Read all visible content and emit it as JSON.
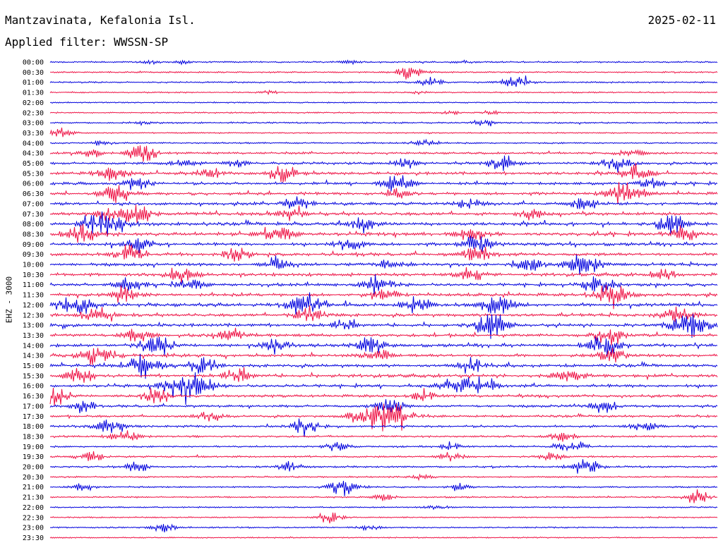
{
  "header": {
    "station": "Mantzavinata, Kefalonia Isl.",
    "date": "2025-02-11",
    "filter": "Applied filter: WWSSN-SP"
  },
  "colors": {
    "even_rows": "#0000dd",
    "odd_rows": "#ee1144"
  },
  "chart_data": {
    "type": "line",
    "title": "Mantzavinata, Kefalonia Isl.",
    "ylabel": "EHZ - 3000",
    "xlabel": "",
    "grid": false,
    "legend": "none",
    "rows": [
      {
        "time": "00:00",
        "activity": 0.2,
        "events": [
          [
            0.15,
            0.2
          ],
          [
            0.2,
            0.15
          ],
          [
            0.45,
            0.2
          ],
          [
            0.62,
            0.15
          ]
        ]
      },
      {
        "time": "00:30",
        "activity": 0.15,
        "events": [
          [
            0.54,
            0.8
          ]
        ]
      },
      {
        "time": "01:00",
        "activity": 0.2,
        "events": [
          [
            0.57,
            0.5
          ],
          [
            0.7,
            0.8
          ]
        ]
      },
      {
        "time": "01:30",
        "activity": 0.15,
        "events": [
          [
            0.33,
            0.15
          ],
          [
            0.55,
            0.15
          ]
        ]
      },
      {
        "time": "02:00",
        "activity": 0.12,
        "events": []
      },
      {
        "time": "02:30",
        "activity": 0.15,
        "events": [
          [
            0.6,
            0.2
          ],
          [
            0.66,
            0.2
          ]
        ]
      },
      {
        "time": "03:00",
        "activity": 0.2,
        "events": [
          [
            0.65,
            0.4
          ],
          [
            0.14,
            0.2
          ]
        ]
      },
      {
        "time": "03:30",
        "activity": 0.15,
        "events": [
          [
            0.02,
            0.5
          ]
        ]
      },
      {
        "time": "04:00",
        "activity": 0.2,
        "events": [
          [
            0.56,
            0.6
          ],
          [
            0.08,
            0.3
          ]
        ]
      },
      {
        "time": "04:30",
        "activity": 0.35,
        "events": [
          [
            0.14,
            1.0
          ],
          [
            0.06,
            0.5
          ],
          [
            0.87,
            0.6
          ]
        ]
      },
      {
        "time": "05:00",
        "activity": 0.45,
        "events": [
          [
            0.28,
            0.6
          ],
          [
            0.2,
            0.5
          ],
          [
            0.68,
            0.8
          ],
          [
            0.85,
            0.9
          ],
          [
            0.53,
            0.6
          ]
        ]
      },
      {
        "time": "05:30",
        "activity": 0.55,
        "events": [
          [
            0.09,
            0.9
          ],
          [
            0.35,
            0.9
          ],
          [
            0.88,
            0.9
          ],
          [
            0.24,
            0.6
          ]
        ]
      },
      {
        "time": "06:00",
        "activity": 0.55,
        "events": [
          [
            0.52,
            0.9
          ],
          [
            0.13,
            0.7
          ],
          [
            0.9,
            0.6
          ]
        ]
      },
      {
        "time": "06:30",
        "activity": 0.55,
        "events": [
          [
            0.1,
            1.0
          ],
          [
            0.86,
            1.3
          ],
          [
            0.52,
            0.6
          ]
        ]
      },
      {
        "time": "07:00",
        "activity": 0.55,
        "events": [
          [
            0.37,
            0.8
          ],
          [
            0.63,
            0.6
          ],
          [
            0.8,
            0.7
          ]
        ]
      },
      {
        "time": "07:30",
        "activity": 0.65,
        "events": [
          [
            0.13,
            1.2
          ],
          [
            0.09,
            0.9
          ],
          [
            0.36,
            0.7
          ],
          [
            0.72,
            0.6
          ]
        ]
      },
      {
        "time": "08:00",
        "activity": 0.65,
        "events": [
          [
            0.08,
            1.4
          ],
          [
            0.47,
            0.7
          ],
          [
            0.93,
            0.9
          ]
        ]
      },
      {
        "time": "08:30",
        "activity": 0.75,
        "events": [
          [
            0.05,
            1.1
          ],
          [
            0.34,
            1.0
          ],
          [
            0.95,
            0.8
          ],
          [
            0.63,
            0.6
          ]
        ]
      },
      {
        "time": "09:00",
        "activity": 0.6,
        "events": [
          [
            0.64,
            1.1
          ],
          [
            0.45,
            0.8
          ],
          [
            0.13,
            0.8
          ]
        ]
      },
      {
        "time": "09:30",
        "activity": 0.6,
        "events": [
          [
            0.12,
            0.9
          ],
          [
            0.28,
            0.8
          ],
          [
            0.64,
            0.9
          ]
        ]
      },
      {
        "time": "10:00",
        "activity": 0.6,
        "events": [
          [
            0.8,
            1.3
          ],
          [
            0.72,
            0.8
          ],
          [
            0.34,
            0.7
          ],
          [
            0.51,
            0.6
          ]
        ]
      },
      {
        "time": "10:30",
        "activity": 0.6,
        "events": [
          [
            0.2,
            0.9
          ],
          [
            0.63,
            0.7
          ],
          [
            0.92,
            0.6
          ]
        ]
      },
      {
        "time": "11:00",
        "activity": 0.6,
        "events": [
          [
            0.12,
            0.9
          ],
          [
            0.82,
            1.1
          ],
          [
            0.49,
            0.9
          ],
          [
            0.21,
            0.7
          ]
        ]
      },
      {
        "time": "11:30",
        "activity": 0.6,
        "events": [
          [
            0.84,
            1.3
          ],
          [
            0.11,
            0.9
          ],
          [
            0.5,
            0.8
          ]
        ]
      },
      {
        "time": "12:00",
        "activity": 0.7,
        "events": [
          [
            0.04,
            1.2
          ],
          [
            0.38,
            1.3
          ],
          [
            0.67,
            1.2
          ],
          [
            0.55,
            0.8
          ]
        ]
      },
      {
        "time": "12:30",
        "activity": 0.6,
        "events": [
          [
            0.39,
            0.9
          ],
          [
            0.07,
            0.9
          ],
          [
            0.94,
            0.9
          ]
        ]
      },
      {
        "time": "13:00",
        "activity": 0.6,
        "events": [
          [
            0.66,
            1.2
          ],
          [
            0.96,
            1.6
          ],
          [
            0.44,
            0.6
          ]
        ]
      },
      {
        "time": "13:30",
        "activity": 0.6,
        "events": [
          [
            0.84,
            1.0
          ],
          [
            0.13,
            0.7
          ],
          [
            0.27,
            0.8
          ]
        ]
      },
      {
        "time": "14:00",
        "activity": 0.6,
        "events": [
          [
            0.16,
            1.2
          ],
          [
            0.48,
            1.0
          ],
          [
            0.83,
            1.1
          ],
          [
            0.34,
            0.8
          ]
        ]
      },
      {
        "time": "14:30",
        "activity": 0.6,
        "events": [
          [
            0.07,
            1.2
          ],
          [
            0.49,
            0.8
          ],
          [
            0.84,
            0.8
          ]
        ]
      },
      {
        "time": "15:00",
        "activity": 0.6,
        "events": [
          [
            0.14,
            1.3
          ],
          [
            0.23,
            0.9
          ],
          [
            0.63,
            0.8
          ]
        ]
      },
      {
        "time": "15:30",
        "activity": 0.6,
        "events": [
          [
            0.04,
            0.9
          ],
          [
            0.28,
            0.8
          ],
          [
            0.78,
            0.9
          ]
        ]
      },
      {
        "time": "16:00",
        "activity": 0.6,
        "events": [
          [
            0.19,
            1.3
          ],
          [
            0.22,
            1.1
          ],
          [
            0.61,
            1.0
          ],
          [
            0.65,
            0.9
          ]
        ]
      },
      {
        "time": "16:30",
        "activity": 0.5,
        "events": [
          [
            0.01,
            0.9
          ],
          [
            0.16,
            0.8
          ],
          [
            0.56,
            0.6
          ]
        ]
      },
      {
        "time": "17:00",
        "activity": 0.45,
        "events": [
          [
            0.51,
            0.9
          ],
          [
            0.05,
            0.6
          ],
          [
            0.83,
            0.7
          ]
        ]
      },
      {
        "time": "17:30",
        "activity": 0.4,
        "events": [
          [
            0.48,
            1.6
          ],
          [
            0.52,
            1.4
          ],
          [
            0.24,
            0.6
          ]
        ]
      },
      {
        "time": "18:00",
        "activity": 0.4,
        "events": [
          [
            0.09,
            0.9
          ],
          [
            0.38,
            0.9
          ],
          [
            0.89,
            0.6
          ]
        ]
      },
      {
        "time": "18:30",
        "activity": 0.3,
        "events": [
          [
            0.11,
            0.7
          ],
          [
            0.77,
            0.6
          ]
        ]
      },
      {
        "time": "19:00",
        "activity": 0.25,
        "events": [
          [
            0.43,
            0.5
          ],
          [
            0.78,
            0.8
          ],
          [
            0.6,
            0.4
          ]
        ]
      },
      {
        "time": "19:30",
        "activity": 0.25,
        "events": [
          [
            0.06,
            0.6
          ],
          [
            0.6,
            0.6
          ],
          [
            0.75,
            0.5
          ]
        ]
      },
      {
        "time": "20:00",
        "activity": 0.3,
        "events": [
          [
            0.13,
            0.6
          ],
          [
            0.8,
            0.9
          ],
          [
            0.36,
            0.5
          ]
        ]
      },
      {
        "time": "20:30",
        "activity": 0.2,
        "events": [
          [
            0.56,
            0.3
          ]
        ]
      },
      {
        "time": "21:00",
        "activity": 0.2,
        "events": [
          [
            0.44,
            1.0
          ],
          [
            0.05,
            0.4
          ],
          [
            0.61,
            0.4
          ]
        ]
      },
      {
        "time": "21:30",
        "activity": 0.2,
        "events": [
          [
            0.97,
            0.7
          ],
          [
            0.5,
            0.4
          ]
        ]
      },
      {
        "time": "22:00",
        "activity": 0.15,
        "events": [
          [
            0.58,
            0.3
          ]
        ]
      },
      {
        "time": "22:30",
        "activity": 0.12,
        "events": [
          [
            0.42,
            0.6
          ]
        ]
      },
      {
        "time": "23:00",
        "activity": 0.15,
        "events": [
          [
            0.17,
            0.5
          ],
          [
            0.48,
            0.3
          ]
        ]
      },
      {
        "time": "23:30",
        "activity": 0.12,
        "events": []
      }
    ]
  }
}
